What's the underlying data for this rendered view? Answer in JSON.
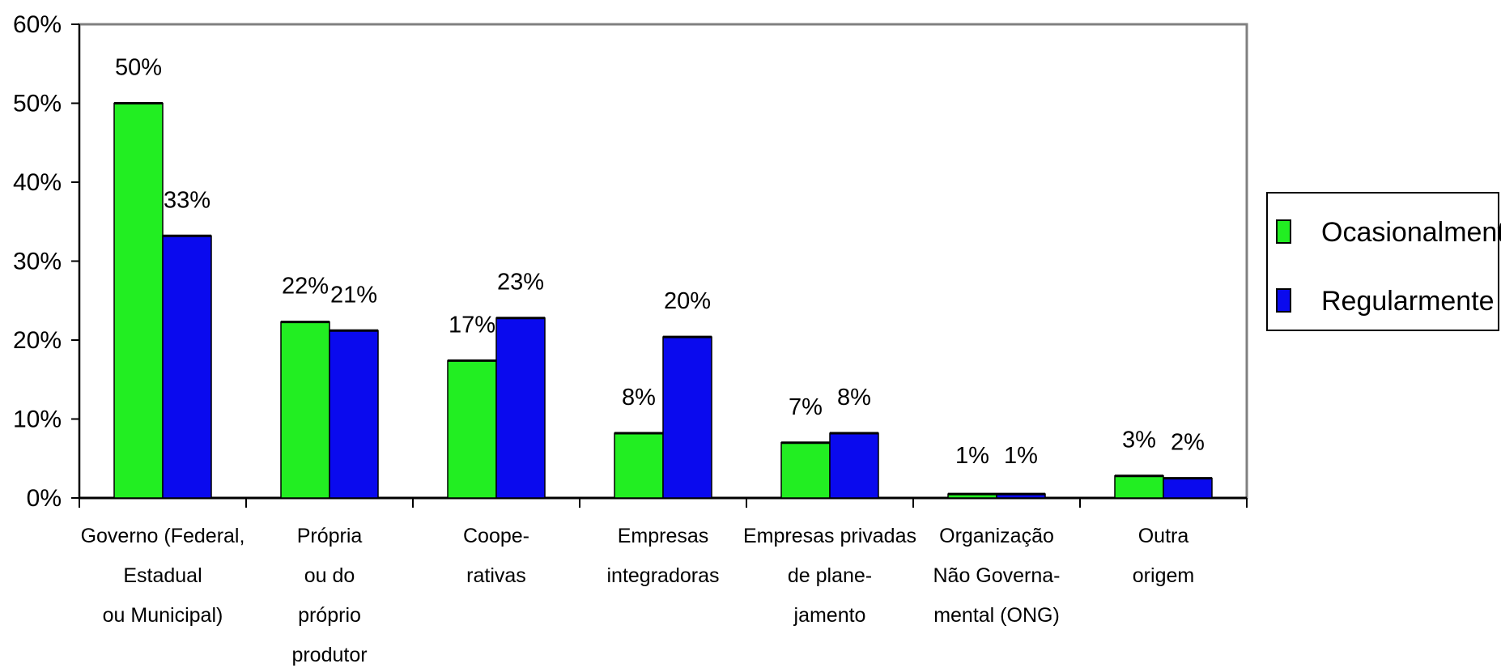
{
  "chart_data": {
    "type": "bar",
    "categories": [
      [
        "Governo (Federal,",
        "Estadual",
        "ou Municipal)"
      ],
      [
        "Própria",
        "ou do",
        "próprio",
        "produtor"
      ],
      [
        "Coope-",
        "rativas"
      ],
      [
        "Empresas",
        "integradoras"
      ],
      [
        "Empresas privadas",
        "de plane-",
        "jamento"
      ],
      [
        "Organização",
        "Não Governa-",
        "mental (ONG)"
      ],
      [
        "Outra",
        "origem"
      ]
    ],
    "series": [
      {
        "name": "Ocasionalmente",
        "color": "#22EE22",
        "values": [
          50,
          22.3,
          17.4,
          8.2,
          7.0,
          0.5,
          2.8
        ],
        "labels": [
          "50%",
          "22%",
          "17%",
          "8%",
          "7%",
          "1%",
          "3%"
        ]
      },
      {
        "name": "Regularmente",
        "color": "#0A0AEE",
        "values": [
          33.2,
          21.2,
          22.8,
          20.4,
          8.2,
          0.5,
          2.5
        ],
        "labels": [
          "33%",
          "21%",
          "23%",
          "20%",
          "8%",
          "1%",
          "2%"
        ]
      }
    ],
    "yticks": [
      "0%",
      "10%",
      "20%",
      "30%",
      "40%",
      "50%",
      "60%"
    ],
    "ylim": [
      0,
      60
    ],
    "legend": "right"
  }
}
